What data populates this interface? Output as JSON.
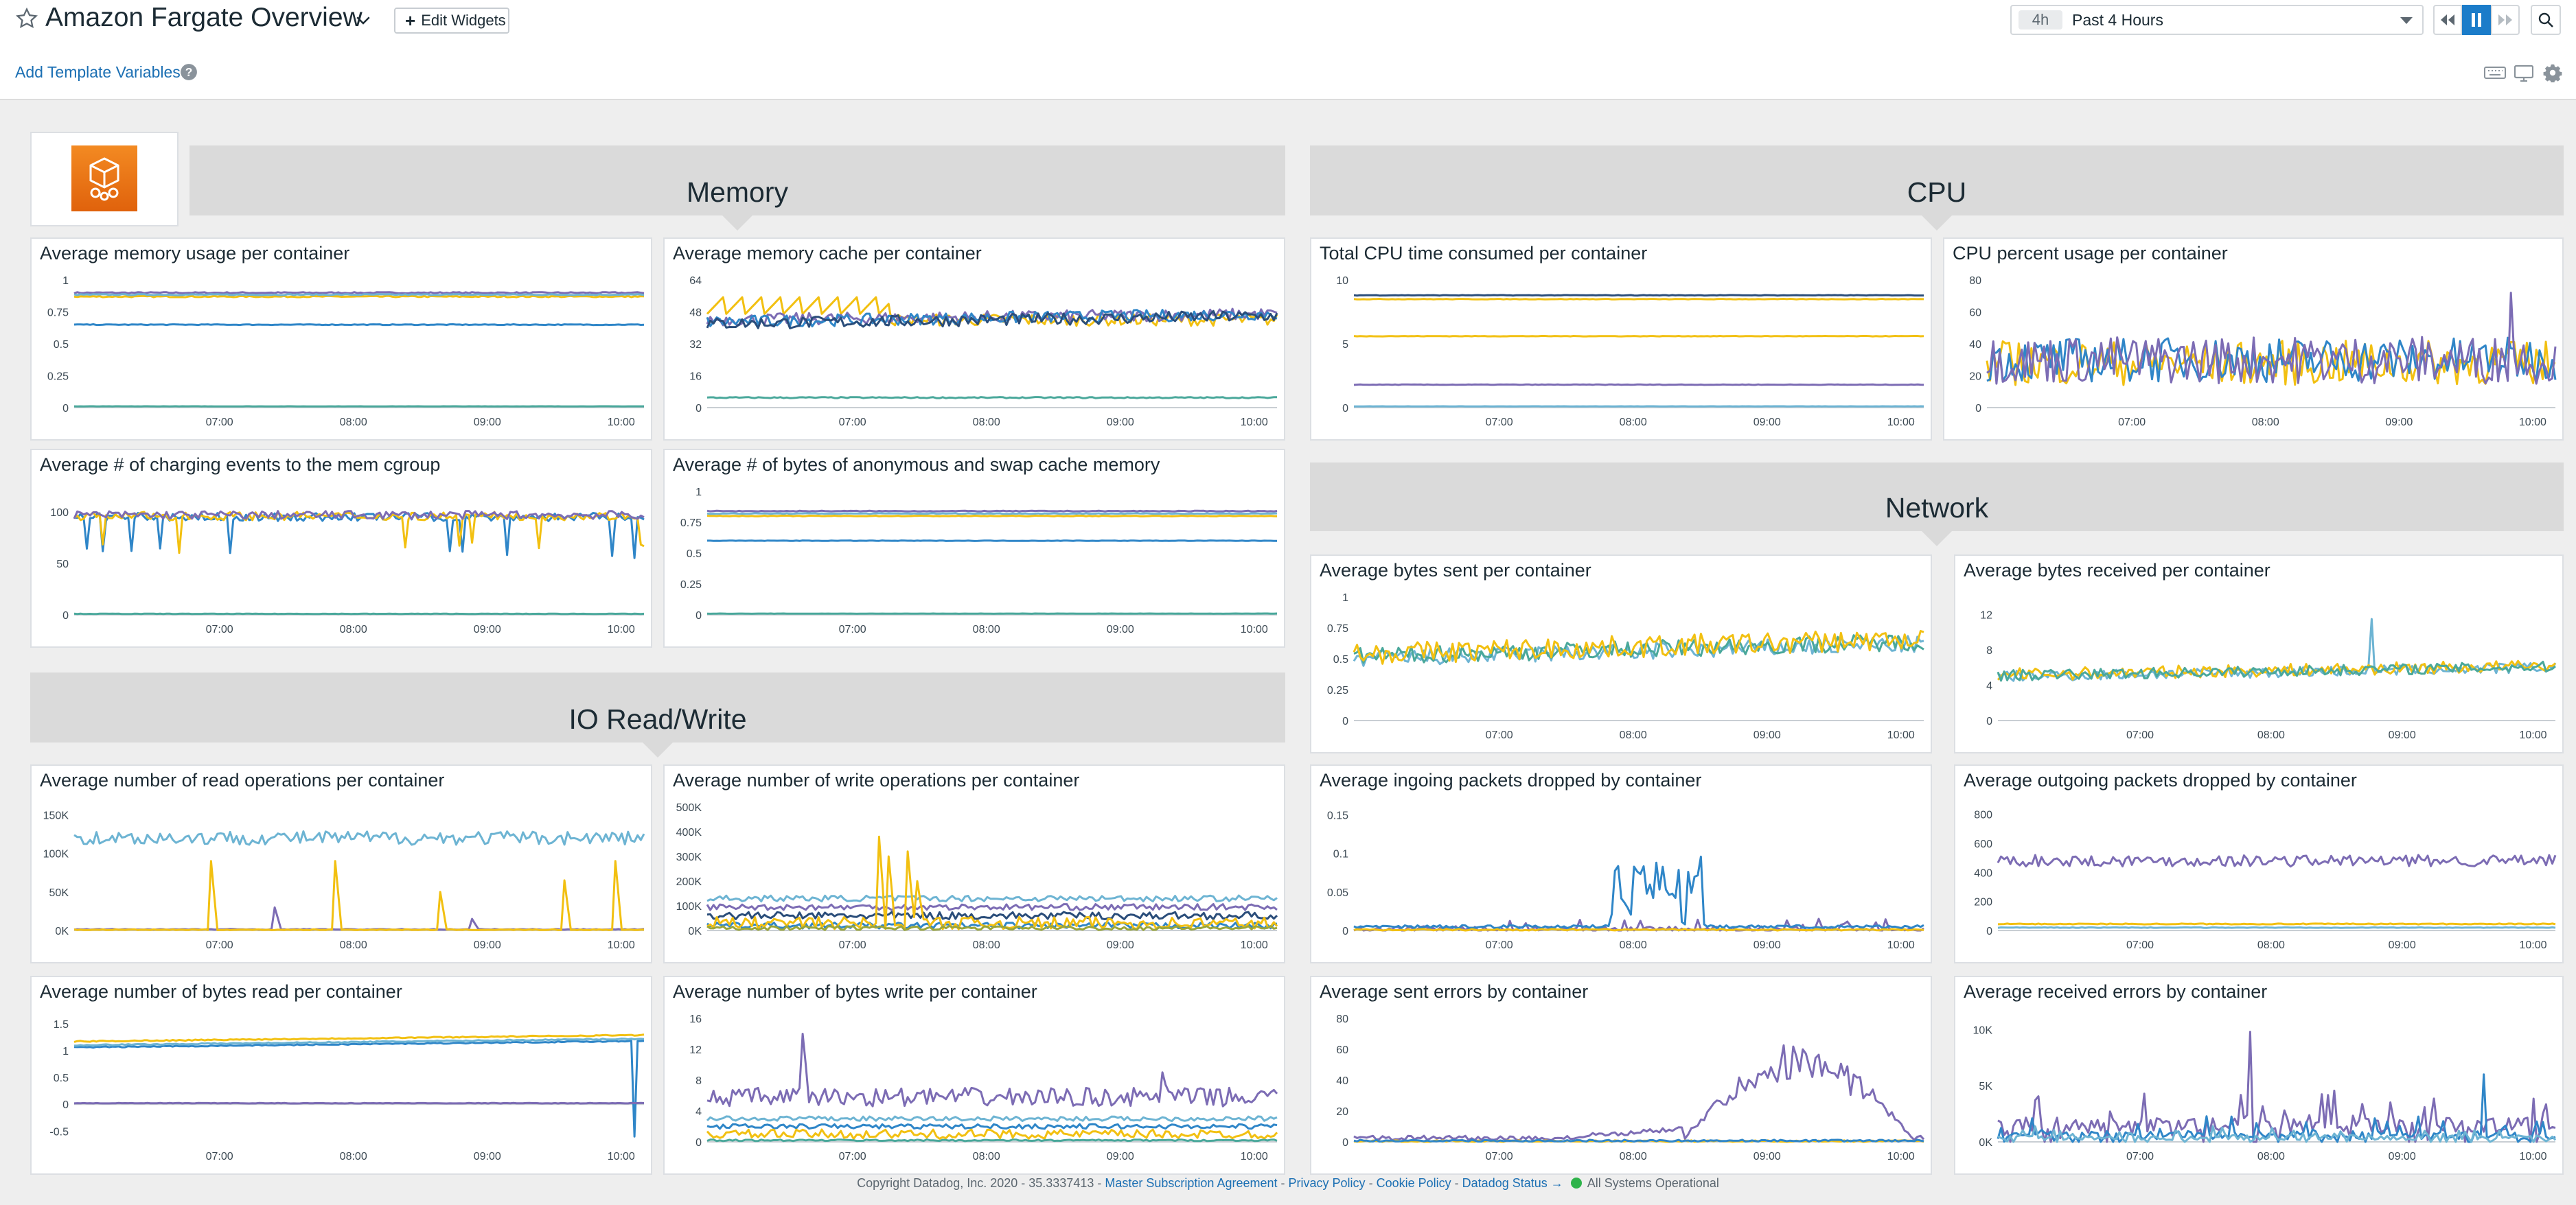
{
  "header": {
    "title": "Amazon Fargate Overview",
    "edit_widgets_label": "Edit Widgets",
    "time_badge": "4h",
    "time_range": "Past 4 Hours",
    "icons": [
      "star-icon",
      "chevron-down-icon",
      "plus-icon",
      "rewind-icon",
      "pause-icon",
      "forward-icon",
      "search-icon"
    ]
  },
  "subbar": {
    "add_template_label": "Add Template Variables",
    "icons": [
      "help-icon",
      "keyboard-icon",
      "tv-mode-icon",
      "gear-icon"
    ]
  },
  "colors": {
    "yellow": "#f2c011",
    "purple": "#7c6cb4",
    "blue": "#2f86c8",
    "lightblue": "#6db4d3",
    "teal": "#4aa89b",
    "navy": "#2a4d7a",
    "olive": "#9aa53a",
    "section_bg": "#dadada",
    "canvas_bg": "#eeeeee",
    "link": "#1b6fb3"
  },
  "sections": {
    "memory": "Memory",
    "cpu": "CPU",
    "network": "Network",
    "io": "IO Read/Write"
  },
  "time_ticks": [
    "07:00",
    "08:00",
    "09:00",
    "10:00"
  ],
  "widgets": [
    {
      "id": "mem_usage",
      "title": "Average memory usage per container",
      "yticks": [
        "1",
        "0.75",
        "0.5",
        "0.25",
        "0"
      ],
      "chart_data": {
        "type": "line",
        "ylim": [
          0,
          1
        ],
        "series": [
          {
            "color": "#7c6cb4",
            "style": "flat",
            "level": 0.9,
            "noise": 0.005
          },
          {
            "color": "#f2c011",
            "style": "flat",
            "level": 0.87,
            "noise": 0.005
          },
          {
            "color": "#6db4d3",
            "style": "flat",
            "level": 0.885,
            "noise": 0.004
          },
          {
            "color": "#2f86c8",
            "style": "flat",
            "level": 0.65,
            "noise": 0.003
          },
          {
            "color": "#4aa89b",
            "style": "flat",
            "level": 0.01,
            "noise": 0.001
          }
        ]
      }
    },
    {
      "id": "mem_cache",
      "title": "Average memory cache per container",
      "yticks": [
        "64",
        "48",
        "32",
        "16",
        "0"
      ],
      "chart_data": {
        "type": "line",
        "ylim": [
          0,
          64
        ],
        "series": [
          {
            "color": "#f2c011",
            "style": "saw",
            "level": 52,
            "noise": 5,
            "end": 0.32,
            "then": 44
          },
          {
            "color": "#7c6cb4",
            "style": "noisy",
            "level": 44,
            "noise": 3,
            "trend": 3
          },
          {
            "color": "#2f86c8",
            "style": "noisy",
            "level": 43,
            "noise": 3,
            "trend": 4
          },
          {
            "color": "#2a4d7a",
            "style": "noisy",
            "level": 42,
            "noise": 3,
            "trend": 4
          },
          {
            "color": "#4aa89b",
            "style": "flat",
            "level": 5,
            "noise": 0.3
          }
        ]
      }
    },
    {
      "id": "cpu_total",
      "title": "Total CPU time consumed per container",
      "yticks": [
        "10",
        "5",
        "0"
      ],
      "chart_data": {
        "type": "line",
        "ylim": [
          0,
          10
        ],
        "series": [
          {
            "color": "#2a4d7a",
            "style": "flat",
            "level": 8.8,
            "noise": 0.02
          },
          {
            "color": "#f2c011",
            "style": "flat",
            "level": 8.5,
            "noise": 0.02
          },
          {
            "color": "#f2c011",
            "style": "flat",
            "level": 5.6,
            "noise": 0.02
          },
          {
            "color": "#7c6cb4",
            "style": "flat",
            "level": 1.8,
            "noise": 0.02
          },
          {
            "color": "#6db4d3",
            "style": "flat",
            "level": 0.1,
            "noise": 0.01
          }
        ]
      }
    },
    {
      "id": "cpu_pct",
      "title": "CPU percent usage per container",
      "yticks": [
        "80",
        "60",
        "40",
        "20",
        "0"
      ],
      "chart_data": {
        "type": "line",
        "ylim": [
          0,
          80
        ],
        "series": [
          {
            "color": "#f2c011",
            "style": "noisy",
            "level": 28,
            "noise": 14
          },
          {
            "color": "#2f86c8",
            "style": "noisy",
            "level": 30,
            "noise": 14
          },
          {
            "color": "#7c6cb4",
            "style": "noisy",
            "level": 30,
            "noise": 15,
            "spike": [
              0.92,
              72
            ]
          }
        ]
      }
    },
    {
      "id": "mem_charge",
      "title": "Average # of charging events to the mem cgroup",
      "yticks": [
        "100",
        "50",
        "0"
      ],
      "chart_data": {
        "type": "line",
        "ylim": [
          0,
          120
        ],
        "series": [
          {
            "color": "#4aa89b",
            "style": "flat",
            "level": 1,
            "noise": 0.2
          },
          {
            "color": "#2f86c8",
            "style": "dips",
            "level": 95,
            "noise": 4,
            "dip": 55
          },
          {
            "color": "#f2c011",
            "style": "dips",
            "level": 96,
            "noise": 4,
            "dip": 60
          },
          {
            "color": "#7c6cb4",
            "style": "noisy",
            "level": 97,
            "noise": 4
          }
        ]
      }
    },
    {
      "id": "mem_anon",
      "title": "Average # of bytes of anonymous and swap cache memory",
      "yticks": [
        "1",
        "0.75",
        "0.5",
        "0.25",
        "0"
      ],
      "chart_data": {
        "type": "line",
        "ylim": [
          0,
          1
        ],
        "series": [
          {
            "color": "#7c6cb4",
            "style": "flat",
            "level": 0.84,
            "noise": 0.003
          },
          {
            "color": "#f2c011",
            "style": "flat",
            "level": 0.8,
            "noise": 0.003
          },
          {
            "color": "#6db4d3",
            "style": "flat",
            "level": 0.82,
            "noise": 0.003
          },
          {
            "color": "#2f86c8",
            "style": "flat",
            "level": 0.6,
            "noise": 0.002
          },
          {
            "color": "#4aa89b",
            "style": "flat",
            "level": 0.01,
            "noise": 0.001
          }
        ]
      }
    },
    {
      "id": "net_sent",
      "title": "Average bytes sent per container",
      "yticks": [
        "1",
        "0.75",
        "0.5",
        "0.25",
        "0"
      ],
      "chart_data": {
        "type": "line",
        "ylim": [
          0,
          1
        ],
        "series": [
          {
            "color": "#6db4d3",
            "style": "noisy",
            "level": 0.5,
            "noise": 0.07,
            "trend": 0.12
          },
          {
            "color": "#4aa89b",
            "style": "noisy",
            "level": 0.52,
            "noise": 0.07,
            "trend": 0.12
          },
          {
            "color": "#f2c011",
            "style": "noisy",
            "level": 0.54,
            "noise": 0.09,
            "trend": 0.12
          }
        ]
      }
    },
    {
      "id": "net_recv",
      "title": "Average bytes received per container",
      "yticks": [
        "12",
        "8",
        "4",
        "0"
      ],
      "chart_data": {
        "type": "line",
        "ylim": [
          0,
          14
        ],
        "series": [
          {
            "color": "#6db4d3",
            "style": "noisy",
            "level": 5,
            "noise": 0.6,
            "trend": 1,
            "spike": [
              0.67,
              11.5
            ]
          },
          {
            "color": "#f2c011",
            "style": "noisy",
            "level": 5.2,
            "noise": 0.7,
            "trend": 1
          },
          {
            "color": "#4aa89b",
            "style": "noisy",
            "level": 5.1,
            "noise": 0.6,
            "trend": 1
          }
        ]
      }
    },
    {
      "id": "io_read",
      "title": "Average number of read operations per container",
      "yticks": [
        "150K",
        "100K",
        "50K",
        "0K"
      ],
      "chart_data": {
        "type": "line",
        "ylim": [
          0,
          160000
        ],
        "series": [
          {
            "color": "#6db4d3",
            "style": "noisy",
            "level": 120000,
            "noise": 9000
          },
          {
            "color": "#7c6cb4",
            "style": "flat",
            "level": 1500,
            "noise": 500,
            "spikes": [
              [
                0.35,
                30000
              ],
              [
                0.7,
                15000
              ]
            ]
          },
          {
            "color": "#f2c011",
            "style": "flat",
            "level": 1000,
            "noise": 500,
            "spikes": [
              [
                0.24,
                90000
              ],
              [
                0.46,
                90000
              ],
              [
                0.64,
                50000
              ],
              [
                0.86,
                65000
              ],
              [
                0.95,
                90000
              ]
            ]
          }
        ]
      }
    },
    {
      "id": "io_write",
      "title": "Average number of write operations per container",
      "yticks": [
        "500K",
        "400K",
        "300K",
        "200K",
        "100K",
        "0K"
      ],
      "chart_data": {
        "type": "line",
        "ylim": [
          0,
          500000
        ],
        "series": [
          {
            "color": "#6db4d3",
            "style": "noisy",
            "level": 130000,
            "noise": 12000
          },
          {
            "color": "#7c6cb4",
            "style": "noisy",
            "level": 95000,
            "noise": 12000
          },
          {
            "color": "#2a4d7a",
            "style": "noisy",
            "level": 60000,
            "noise": 15000
          },
          {
            "color": "#2f86c8",
            "style": "noisy",
            "level": 20000,
            "noise": 12000
          },
          {
            "color": "#f2c011",
            "style": "noisy",
            "level": 30000,
            "noise": 25000,
            "spikes": [
              [
                0.3,
                380000
              ],
              [
                0.32,
                300000
              ],
              [
                0.35,
                320000
              ],
              [
                0.37,
                200000
              ]
            ]
          },
          {
            "color": "#9aa53a",
            "style": "noisy",
            "level": 10000,
            "noise": 8000
          }
        ]
      }
    },
    {
      "id": "io_bytes_read",
      "title": "Average number of bytes read per container",
      "yticks": [
        "1.5",
        "1",
        "0.5",
        "0",
        "-0.5"
      ],
      "chart_data": {
        "type": "line",
        "ylim": [
          -0.7,
          1.6
        ],
        "series": [
          {
            "color": "#f2c011",
            "style": "flat",
            "level": 1.17,
            "noise": 0.01,
            "trend": 0.12
          },
          {
            "color": "#2f86c8",
            "style": "flat",
            "level": 1.06,
            "noise": 0.01,
            "trend": 0.12,
            "spike": [
              0.986,
              -0.6
            ]
          },
          {
            "color": "#6db4d3",
            "style": "flat",
            "level": 1.1,
            "noise": 0.01,
            "trend": 0.12
          },
          {
            "color": "#7c6cb4",
            "style": "flat",
            "level": 0.02,
            "noise": 0.005
          }
        ]
      }
    },
    {
      "id": "io_bytes_write",
      "title": "Average number of bytes write per container",
      "yticks": [
        "16",
        "12",
        "8",
        "4",
        "0"
      ],
      "chart_data": {
        "type": "line",
        "ylim": [
          0,
          16
        ],
        "series": [
          {
            "color": "#7c6cb4",
            "style": "noisy",
            "level": 5.8,
            "noise": 1.2,
            "spikes": [
              [
                0.17,
                14
              ],
              [
                0.8,
                9
              ]
            ]
          },
          {
            "color": "#6db4d3",
            "style": "noisy",
            "level": 3,
            "noise": 0.3
          },
          {
            "color": "#2f86c8",
            "style": "noisy",
            "level": 2,
            "noise": 0.3
          },
          {
            "color": "#f2c011",
            "style": "noisy",
            "level": 1,
            "noise": 0.6
          },
          {
            "color": "#4aa89b",
            "style": "flat",
            "level": 0.2,
            "noise": 0.1
          }
        ]
      }
    },
    {
      "id": "pkt_in",
      "title": "Average ingoing packets dropped by container",
      "yticks": [
        "0.15",
        "0.1",
        "0.05",
        "0"
      ],
      "chart_data": {
        "type": "line",
        "ylim": [
          0,
          0.16
        ],
        "series": [
          {
            "color": "#7c6cb4",
            "style": "sparse",
            "level": 0.002,
            "noise": 0.01
          },
          {
            "color": "#2f86c8",
            "style": "burst",
            "level": 0.003,
            "noise": 0.004,
            "burst": [
              0.45,
              0.62,
              0.12
            ]
          },
          {
            "color": "#f2c011",
            "style": "flat",
            "level": 0.001,
            "noise": 0.001
          }
        ]
      }
    },
    {
      "id": "pkt_out",
      "title": "Average outgoing packets dropped by container",
      "yticks": [
        "800",
        "600",
        "400",
        "200",
        "0"
      ],
      "chart_data": {
        "type": "line",
        "ylim": [
          0,
          850
        ],
        "series": [
          {
            "color": "#7c6cb4",
            "style": "noisy",
            "level": 480,
            "noise": 40
          },
          {
            "color": "#f2c011",
            "style": "flat",
            "level": 45,
            "noise": 3
          },
          {
            "color": "#6db4d3",
            "style": "flat",
            "level": 20,
            "noise": 2
          }
        ]
      }
    },
    {
      "id": "err_sent",
      "title": "Average sent errors by container",
      "yticks": [
        "80",
        "60",
        "40",
        "20",
        "0"
      ],
      "chart_data": {
        "type": "line",
        "ylim": [
          0,
          80
        ],
        "series": [
          {
            "color": "#7c6cb4",
            "style": "hump",
            "level": 1,
            "noise": 3,
            "hump": [
              0.58,
              0.98,
              55
            ]
          },
          {
            "color": "#f2c011",
            "style": "flat",
            "level": 0.5,
            "noise": 0.5
          },
          {
            "color": "#2f86c8",
            "style": "flat",
            "level": 0.8,
            "noise": 0.6
          }
        ]
      }
    },
    {
      "id": "err_recv",
      "title": "Average received errors by container",
      "yticks": [
        "10K",
        "5K",
        "0K"
      ],
      "chart_data": {
        "type": "line",
        "ylim": [
          0,
          11000
        ],
        "series": [
          {
            "color": "#7c6cb4",
            "style": "sparse",
            "level": 1500,
            "noise": 2200,
            "spike": [
              0.45,
              9800
            ]
          },
          {
            "color": "#2f86c8",
            "style": "sparse",
            "level": 600,
            "noise": 1200,
            "spike": [
              0.87,
              6000
            ]
          },
          {
            "color": "#6db4d3",
            "style": "sparse",
            "level": 400,
            "noise": 800
          }
        ]
      }
    }
  ],
  "footer": {
    "copyright": "Copyright Datadog, Inc. 2020 - 35.3337413 -",
    "msa": "Master Subscription Agreement",
    "sep1": "-",
    "privacy": "Privacy Policy",
    "sep2": "-",
    "cookie": "Cookie Policy",
    "sep3": "-",
    "status_link": "Datadog Status →",
    "status_text": "All Systems Operational"
  }
}
